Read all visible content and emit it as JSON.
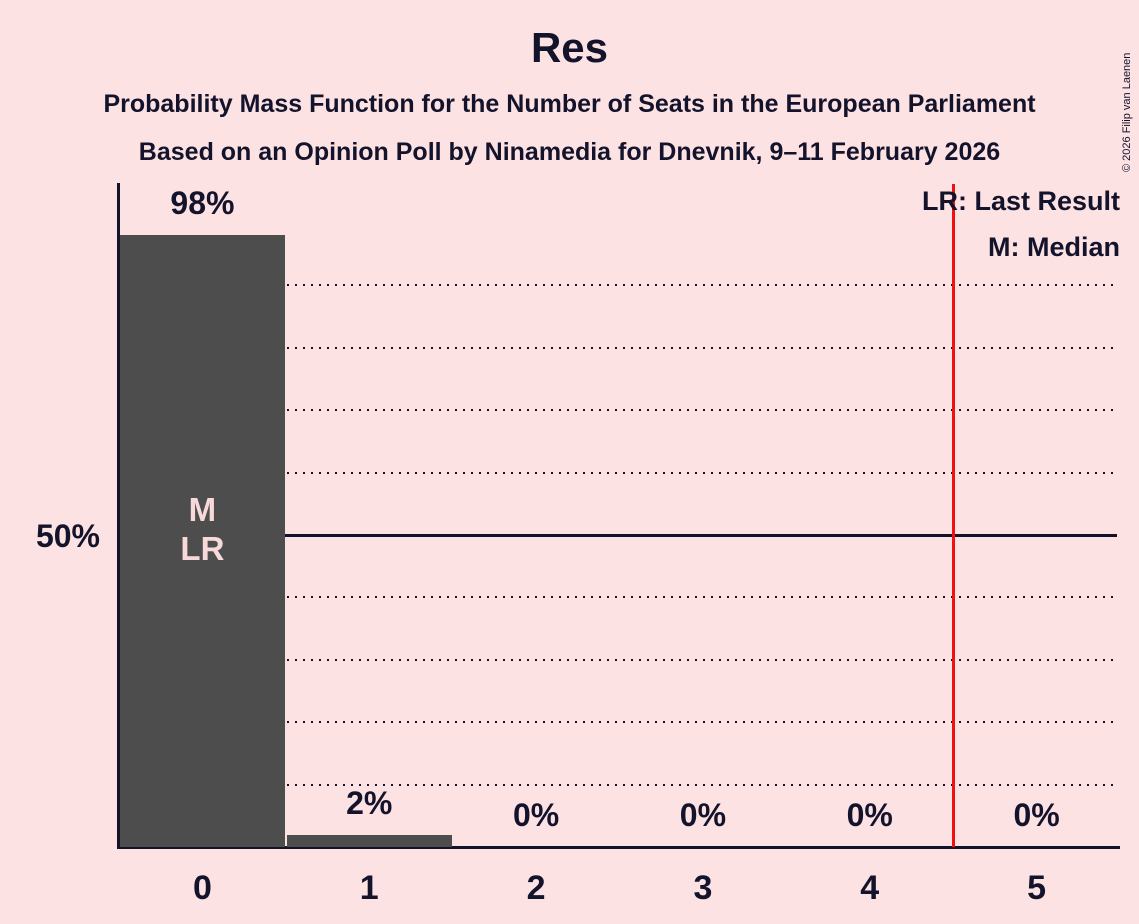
{
  "title": "Res",
  "subtitle1": "Probability Mass Function for the Number of Seats in the European Parliament",
  "subtitle2": "Based on an Opinion Poll by Ninamedia for Dnevnik, 9–11 February 2026",
  "copyright": "© 2026 Filip van Laenen",
  "legend": {
    "lr": "LR: Last Result",
    "m": "M: Median"
  },
  "y_axis": {
    "tick_label": "50%",
    "tick_pct": 50
  },
  "chart_data": {
    "type": "bar",
    "title": "Res",
    "xlabel": "",
    "ylabel": "",
    "categories": [
      "0",
      "1",
      "2",
      "3",
      "4",
      "5"
    ],
    "values": [
      98,
      2,
      0,
      0,
      0,
      0
    ],
    "value_labels": [
      "98%",
      "2%",
      "0%",
      "0%",
      "0%",
      "0%"
    ],
    "ylim_pct": [
      0,
      106.5
    ],
    "gridline_step_pct": 10,
    "solid_gridline_pct": 50,
    "grid": "dotted-horizontal",
    "legend_position": "top-right",
    "annotations": [
      {
        "category_index": 0,
        "lines": "M\nLR",
        "meaning": "Median and Last Result at 0 seats"
      }
    ],
    "last_result_line_x": 4.5,
    "median_category": "0",
    "last_result_category": "0"
  },
  "colors": {
    "background": "#fce2e2",
    "text": "#13132c",
    "bar": "#4d4d4d",
    "bar_label": "#f8d9d9",
    "red_line": "#f10f0f"
  }
}
